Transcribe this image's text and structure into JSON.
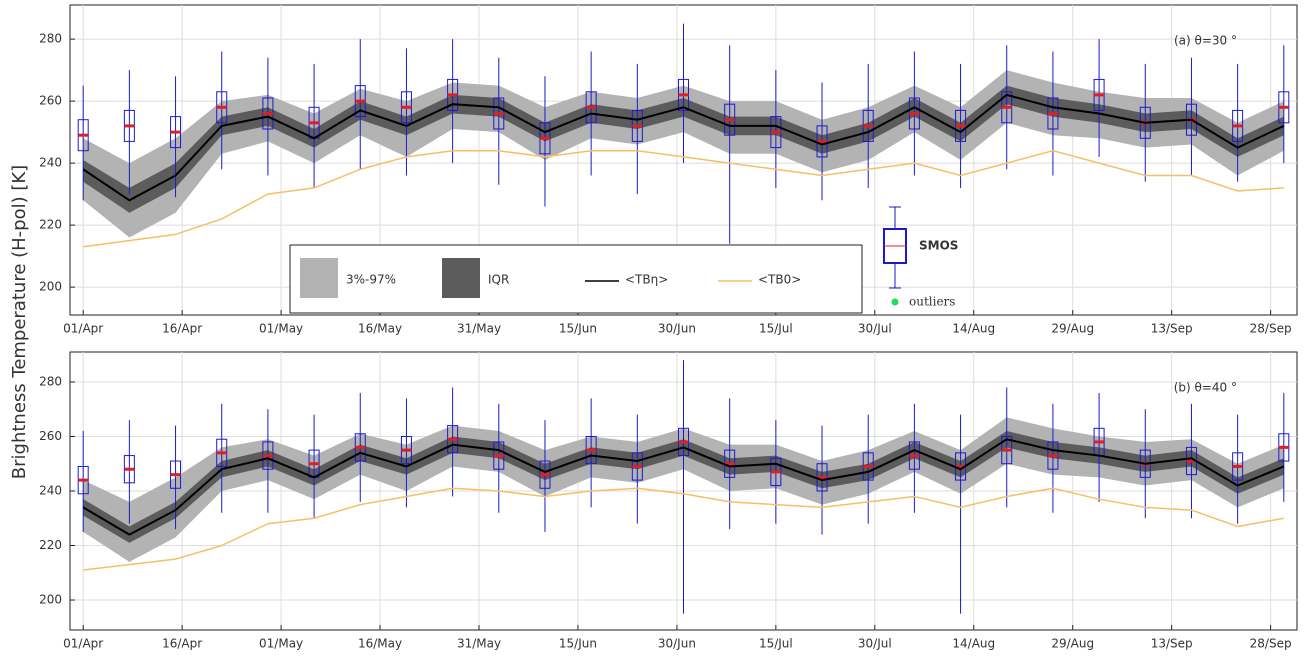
{
  "chart_data": [
    {
      "type": "box-band",
      "annotation": "(a) θ=30 °",
      "ylabel": "Brightness Temperature (H-pol) [K]",
      "legend": true,
      "xlim": [
        "30/Mar",
        "02/Oct"
      ],
      "xticks": [
        "01/Apr",
        "16/Apr",
        "01/May",
        "16/May",
        "31/May",
        "15/Jun",
        "30/Jun",
        "15/Jul",
        "30/Jul",
        "14/Aug",
        "29/Aug",
        "13/Sep",
        "28/Sep"
      ],
      "ylim": [
        191,
        291
      ],
      "yticks": [
        200,
        220,
        240,
        260,
        280
      ],
      "grid": true,
      "x": [
        "01/Apr",
        "08/Apr",
        "15/Apr",
        "22/Apr",
        "29/Apr",
        "06/May",
        "13/May",
        "20/May",
        "27/May",
        "03/Jun",
        "10/Jun",
        "17/Jun",
        "24/Jun",
        "01/Jul",
        "08/Jul",
        "15/Jul",
        "22/Jul",
        "29/Jul",
        "05/Aug",
        "12/Aug",
        "19/Aug",
        "26/Aug",
        "02/Sep",
        "09/Sep",
        "16/Sep",
        "23/Sep",
        "30/Sep"
      ],
      "series": [
        {
          "name": "3%-97%",
          "color": "#b3b3b3",
          "low": [
            228,
            216,
            224,
            243,
            247,
            240,
            249,
            242,
            251,
            250,
            241,
            248,
            246,
            250,
            243,
            243,
            237,
            241,
            250,
            241,
            253,
            249,
            248,
            245,
            246,
            236,
            244
          ],
          "high": [
            248,
            240,
            248,
            260,
            262,
            256,
            264,
            260,
            266,
            265,
            258,
            263,
            261,
            265,
            260,
            260,
            254,
            258,
            265,
            258,
            270,
            266,
            263,
            261,
            261,
            253,
            260
          ]
        },
        {
          "name": "IQR",
          "color": "#5c5c5c",
          "low": [
            234,
            224,
            232,
            249,
            252,
            245,
            254,
            249,
            256,
            255,
            247,
            253,
            251,
            255,
            249,
            249,
            243,
            247,
            255,
            247,
            259,
            255,
            253,
            250,
            251,
            242,
            249
          ],
          "high": [
            241,
            232,
            240,
            255,
            258,
            251,
            260,
            255,
            262,
            261,
            253,
            259,
            257,
            261,
            255,
            255,
            249,
            253,
            261,
            253,
            265,
            261,
            259,
            256,
            257,
            248,
            255
          ]
        },
        {
          "name": "<TBη>",
          "color": "#000000",
          "values": [
            238,
            228,
            236,
            252,
            255,
            248,
            257,
            252,
            259,
            258,
            250,
            256,
            254,
            258,
            252,
            252,
            246,
            250,
            258,
            250,
            262,
            258,
            256,
            253,
            254,
            245,
            252
          ]
        },
        {
          "name": "<TB0>",
          "color": "#f5c063",
          "values": [
            213,
            215,
            217,
            222,
            230,
            232,
            238,
            242,
            244,
            244,
            242,
            244,
            244,
            242,
            240,
            238,
            236,
            238,
            240,
            236,
            240,
            244,
            240,
            236,
            236,
            231,
            232
          ]
        }
      ],
      "boxes": {
        "name": "SMOS",
        "color": "#1a1acc",
        "median_color": "#e02020",
        "outlier_label": "outliers",
        "outlier_color": "#22dd55",
        "median": [
          249,
          252,
          250,
          258,
          256,
          253,
          260,
          258,
          262,
          256,
          248,
          258,
          252,
          262,
          254,
          250,
          247,
          252,
          256,
          252,
          258,
          256,
          262,
          253,
          254,
          252,
          258
        ],
        "q1": [
          244,
          247,
          245,
          253,
          251,
          248,
          255,
          253,
          257,
          251,
          243,
          253,
          247,
          257,
          249,
          245,
          242,
          247,
          251,
          247,
          253,
          251,
          257,
          248,
          249,
          247,
          253
        ],
        "q3": [
          254,
          257,
          255,
          263,
          261,
          258,
          265,
          263,
          267,
          261,
          253,
          263,
          257,
          267,
          259,
          255,
          252,
          257,
          261,
          257,
          263,
          261,
          267,
          258,
          259,
          257,
          263
        ],
        "low": [
          228,
          230,
          229,
          238,
          236,
          232,
          238,
          236,
          240,
          233,
          226,
          236,
          230,
          240,
          214,
          232,
          228,
          232,
          236,
          232,
          238,
          236,
          242,
          234,
          236,
          234,
          240
        ],
        "high": [
          265,
          270,
          268,
          276,
          274,
          272,
          280,
          277,
          280,
          274,
          268,
          276,
          272,
          285,
          278,
          270,
          266,
          272,
          276,
          272,
          278,
          276,
          280,
          272,
          274,
          272,
          278
        ]
      }
    },
    {
      "type": "box-band",
      "annotation": "(b) θ=40 °",
      "legend": false,
      "xlim": [
        "30/Mar",
        "02/Oct"
      ],
      "xticks": [
        "01/Apr",
        "16/Apr",
        "01/May",
        "16/May",
        "31/May",
        "15/Jun",
        "30/Jun",
        "15/Jul",
        "30/Jul",
        "14/Aug",
        "29/Aug",
        "13/Sep",
        "28/Sep"
      ],
      "ylim": [
        189,
        291
      ],
      "yticks": [
        200,
        220,
        240,
        260,
        280
      ],
      "grid": true,
      "x": [
        "01/Apr",
        "08/Apr",
        "15/Apr",
        "22/Apr",
        "29/Apr",
        "06/May",
        "13/May",
        "20/May",
        "27/May",
        "03/Jun",
        "10/Jun",
        "17/Jun",
        "24/Jun",
        "01/Jul",
        "08/Jul",
        "15/Jul",
        "22/Jul",
        "29/Jul",
        "05/Aug",
        "12/Aug",
        "19/Aug",
        "26/Aug",
        "02/Sep",
        "09/Sep",
        "16/Sep",
        "23/Sep",
        "30/Sep"
      ],
      "series": [
        {
          "name": "3%-97%",
          "color": "#b3b3b3",
          "low": [
            225,
            214,
            223,
            240,
            244,
            237,
            246,
            240,
            249,
            247,
            238,
            245,
            243,
            248,
            240,
            241,
            235,
            239,
            247,
            239,
            250,
            246,
            245,
            242,
            244,
            234,
            241
          ],
          "high": [
            244,
            236,
            245,
            256,
            259,
            253,
            261,
            257,
            264,
            262,
            255,
            260,
            258,
            263,
            257,
            257,
            251,
            255,
            262,
            255,
            267,
            263,
            260,
            258,
            259,
            250,
            257
          ]
        },
        {
          "name": "IQR",
          "color": "#5c5c5c",
          "low": [
            231,
            221,
            230,
            245,
            249,
            242,
            251,
            246,
            254,
            252,
            244,
            250,
            248,
            253,
            246,
            247,
            241,
            244,
            252,
            245,
            256,
            252,
            250,
            247,
            249,
            239,
            246
          ],
          "high": [
            237,
            227,
            236,
            251,
            255,
            248,
            257,
            252,
            260,
            258,
            250,
            256,
            254,
            259,
            252,
            253,
            247,
            250,
            258,
            251,
            262,
            258,
            256,
            253,
            255,
            245,
            252
          ]
        },
        {
          "name": "<TBη>",
          "color": "#000000",
          "values": [
            234,
            224,
            233,
            248,
            252,
            245,
            254,
            249,
            257,
            255,
            247,
            253,
            251,
            256,
            249,
            250,
            244,
            247,
            255,
            248,
            259,
            255,
            253,
            250,
            252,
            242,
            249
          ]
        },
        {
          "name": "<TB0>",
          "color": "#f5c063",
          "values": [
            211,
            213,
            215,
            220,
            228,
            230,
            235,
            238,
            241,
            240,
            238,
            240,
            241,
            239,
            236,
            235,
            234,
            236,
            238,
            234,
            238,
            241,
            237,
            234,
            233,
            227,
            230
          ]
        }
      ],
      "boxes": {
        "name": "SMOS",
        "color": "#1a1acc",
        "median_color": "#e02020",
        "median": [
          244,
          248,
          246,
          254,
          253,
          250,
          256,
          255,
          259,
          253,
          246,
          255,
          249,
          258,
          250,
          247,
          245,
          249,
          253,
          249,
          255,
          253,
          258,
          250,
          251,
          249,
          256
        ],
        "q1": [
          239,
          243,
          241,
          249,
          248,
          245,
          251,
          250,
          254,
          248,
          241,
          250,
          244,
          253,
          245,
          242,
          240,
          244,
          248,
          244,
          250,
          248,
          253,
          245,
          246,
          244,
          251
        ],
        "q3": [
          249,
          253,
          251,
          259,
          258,
          255,
          261,
          260,
          264,
          258,
          251,
          260,
          254,
          263,
          255,
          252,
          250,
          254,
          258,
          254,
          260,
          258,
          263,
          255,
          256,
          254,
          261
        ],
        "low": [
          225,
          228,
          226,
          232,
          232,
          230,
          236,
          234,
          238,
          232,
          225,
          234,
          228,
          195,
          226,
          228,
          224,
          228,
          232,
          195,
          234,
          232,
          236,
          230,
          230,
          228,
          236
        ],
        "high": [
          262,
          266,
          264,
          272,
          270,
          268,
          276,
          274,
          278,
          272,
          266,
          274,
          268,
          288,
          274,
          266,
          264,
          268,
          272,
          268,
          278,
          272,
          276,
          270,
          272,
          268,
          276
        ]
      }
    }
  ]
}
